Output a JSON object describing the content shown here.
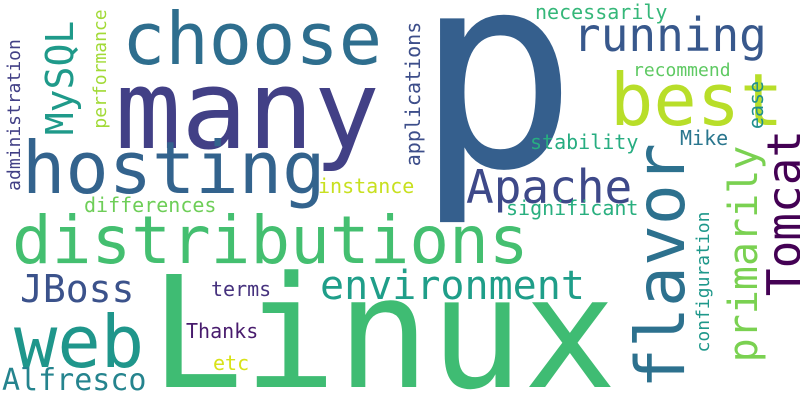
{
  "words": [
    {
      "key": "p",
      "text": "p",
      "color": "#355f8d"
    },
    {
      "key": "linux",
      "text": "Linux",
      "color": "#3fbc73"
    },
    {
      "key": "many",
      "text": "many",
      "color": "#424086"
    },
    {
      "key": "choose",
      "text": "choose",
      "color": "#2e6e8e"
    },
    {
      "key": "hosting",
      "text": "hosting",
      "color": "#33638d"
    },
    {
      "key": "distributions",
      "text": "distributions",
      "color": "#44bf70"
    },
    {
      "key": "best",
      "text": "best",
      "color": "#b8de29"
    },
    {
      "key": "running",
      "text": "running",
      "color": "#38588c"
    },
    {
      "key": "web",
      "text": "web",
      "color": "#1f968b"
    },
    {
      "key": "flavor",
      "text": "flavor",
      "color": "#2d718e"
    },
    {
      "key": "mysql",
      "text": "MySQL",
      "color": "#1f9a8a"
    },
    {
      "key": "apache",
      "text": "Apache",
      "color": "#3e4989"
    },
    {
      "key": "environment",
      "text": "environment",
      "color": "#1f9e89"
    },
    {
      "key": "jboss",
      "text": "JBoss",
      "color": "#3b528b"
    },
    {
      "key": "tomcat",
      "text": "Tomcat",
      "color": "#440154"
    },
    {
      "key": "primarily",
      "text": "primarily",
      "color": "#7ad151"
    },
    {
      "key": "alfresco",
      "text": "Alfresco",
      "color": "#25848e"
    },
    {
      "key": "applications",
      "text": "applications",
      "color": "#3d4e8a"
    },
    {
      "key": "necessarily",
      "text": "necessarily",
      "color": "#35b779"
    },
    {
      "key": "recommend",
      "text": "recommend",
      "color": "#5ec962"
    },
    {
      "key": "ease",
      "text": "ease",
      "color": "#21908d"
    },
    {
      "key": "stability",
      "text": "stability",
      "color": "#27ad81"
    },
    {
      "key": "mike",
      "text": "Mike",
      "color": "#2a768e"
    },
    {
      "key": "instance",
      "text": "instance",
      "color": "#c8e020"
    },
    {
      "key": "differences",
      "text": "differences",
      "color": "#6ece58"
    },
    {
      "key": "significant",
      "text": "significant",
      "color": "#29af7f"
    },
    {
      "key": "administration",
      "text": "administration",
      "color": "#424086"
    },
    {
      "key": "performance",
      "text": "performance",
      "color": "#a2da37"
    },
    {
      "key": "configuration",
      "text": "configuration",
      "color": "#1f988b"
    },
    {
      "key": "terms",
      "text": "terms",
      "color": "#46327e"
    },
    {
      "key": "thanks",
      "text": "Thanks",
      "color": "#481b6d"
    },
    {
      "key": "etc",
      "text": "etc",
      "color": "#d8e219"
    }
  ]
}
